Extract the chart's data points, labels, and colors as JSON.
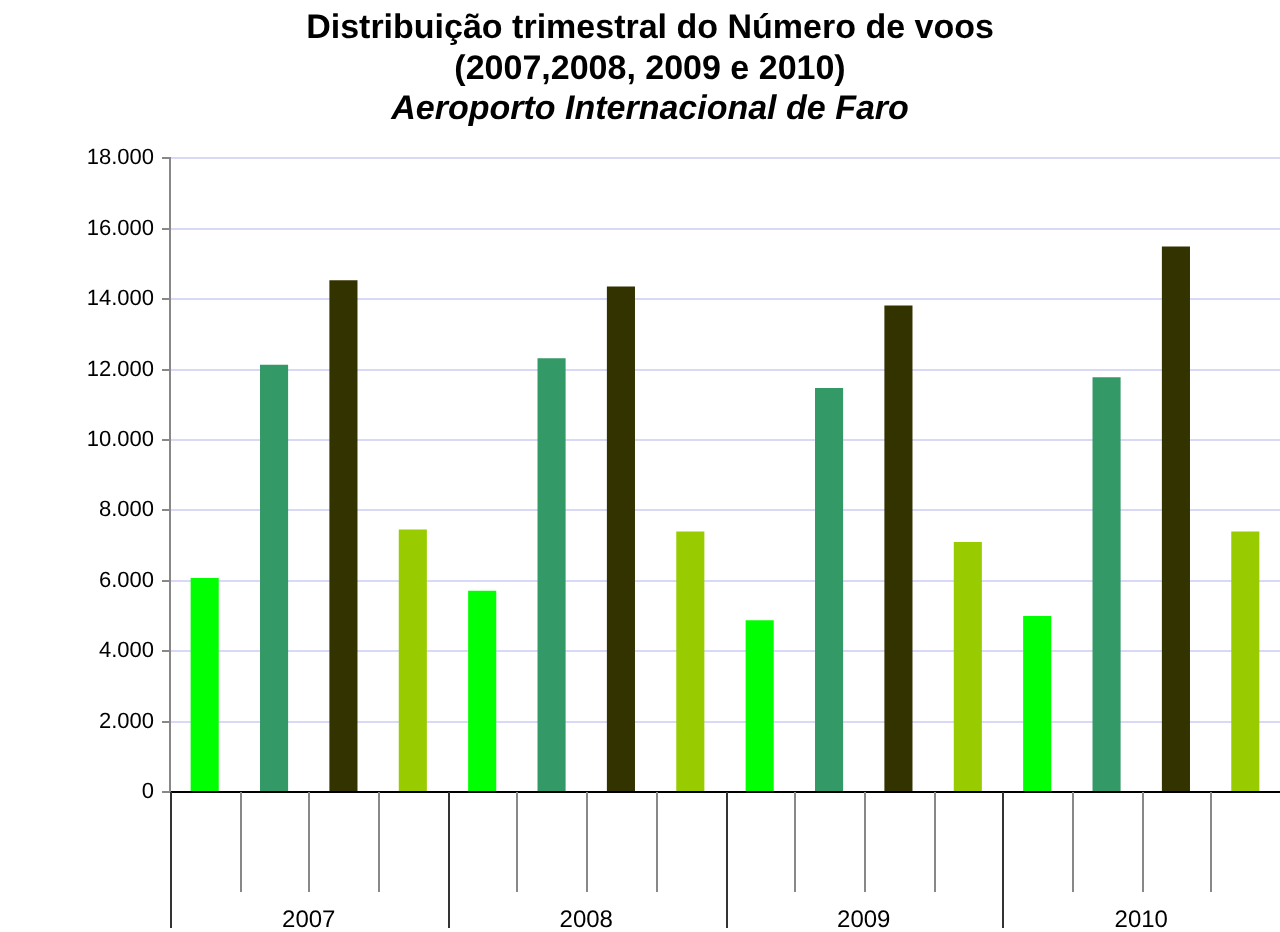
{
  "chart_data": {
    "type": "bar",
    "title": "Distribuição trimestral do Número de voos\n(2007,2008, 2009 e 2010)",
    "subtitle": "Aeroporto Internacional de Faro",
    "categories": [
      null,
      null,
      null,
      null,
      null,
      null,
      null,
      null,
      null,
      null,
      null,
      null,
      null,
      null,
      null,
      null
    ],
    "values": [
      6080,
      12140,
      14540,
      7460,
      5720,
      12320,
      14360,
      7400,
      4880,
      11480,
      13820,
      7100,
      5000,
      11780,
      15500,
      7400
    ],
    "colors": [
      "#00ff00",
      "#339966",
      "#333300",
      "#99cc00",
      "#00ff00",
      "#339966",
      "#333300",
      "#99cc00",
      "#00ff00",
      "#339966",
      "#333300",
      "#99cc00",
      "#00ff00",
      "#339966",
      "#333300",
      "#99cc00"
    ],
    "ylim": [
      0,
      18000
    ],
    "yticks": [
      {
        "value": 0,
        "label": "0"
      },
      {
        "value": 2000,
        "label": "2.000"
      },
      {
        "value": 4000,
        "label": "4.000"
      },
      {
        "value": 6000,
        "label": "6.000"
      },
      {
        "value": 8000,
        "label": "8.000"
      },
      {
        "value": 10000,
        "label": "10.000"
      },
      {
        "value": 12000,
        "label": "12.000"
      },
      {
        "value": 14000,
        "label": "14.000"
      },
      {
        "value": 16000,
        "label": "16.000"
      },
      {
        "value": 18000,
        "label": "18.000"
      }
    ],
    "grid": "y",
    "legend": false,
    "annotations": [
      "2007",
      "2008",
      "2009",
      "2010"
    ]
  }
}
